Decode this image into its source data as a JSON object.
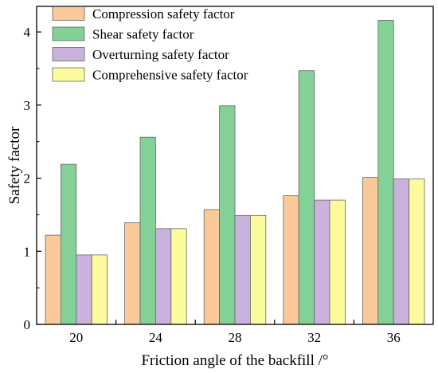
{
  "chart_data": {
    "type": "bar",
    "title": "",
    "xlabel": "Friction angle of the backfill /°",
    "ylabel": "Safety factor",
    "categories": [
      "20",
      "24",
      "28",
      "32",
      "36"
    ],
    "ylim": [
      0,
      4.35
    ],
    "yticks": [
      "0",
      "1",
      "2",
      "3",
      "4"
    ],
    "grid": false,
    "legend_position": "top-left",
    "series": [
      {
        "name": "Compression safety factor",
        "color": "#F9C99A",
        "values": [
          1.22,
          1.39,
          1.57,
          1.76,
          2.01
        ]
      },
      {
        "name": "Shear safety factor",
        "color": "#83D196",
        "values": [
          2.19,
          2.56,
          2.99,
          3.47,
          4.16
        ]
      },
      {
        "name": "Overturning safety factor",
        "color": "#C9B2DC",
        "values": [
          0.95,
          1.31,
          1.49,
          1.7,
          1.99
        ]
      },
      {
        "name": "Comprehensive safety factor",
        "color": "#FBFB9C",
        "values": [
          0.95,
          1.31,
          1.49,
          1.7,
          1.99
        ]
      }
    ]
  }
}
